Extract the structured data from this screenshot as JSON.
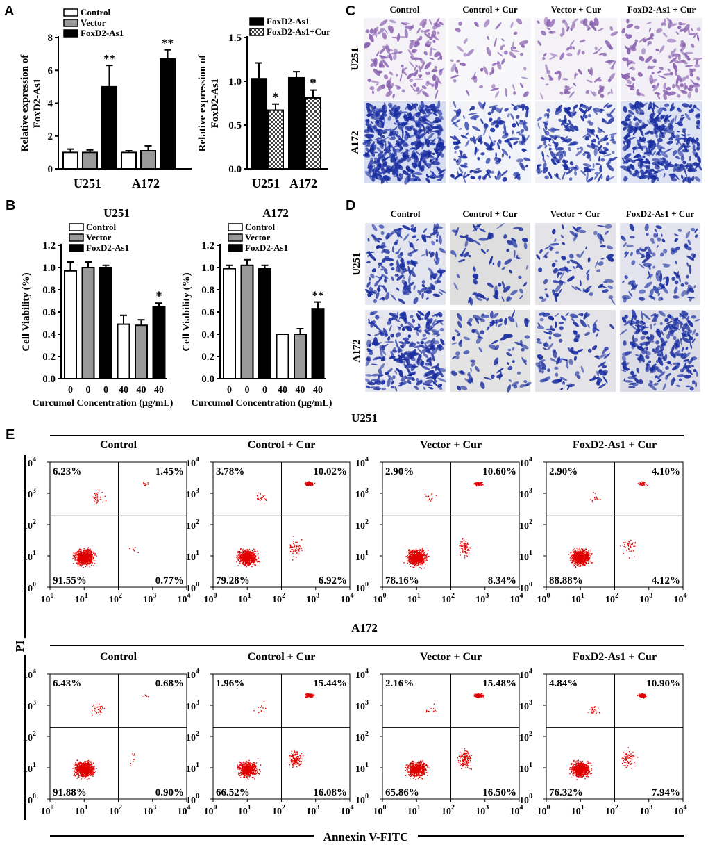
{
  "panels": {
    "A": "A",
    "B": "B",
    "C": "C",
    "D": "D",
    "E": "E"
  },
  "colors": {
    "control": "#ffffff",
    "vector": "#999999",
    "foxd2": "#000000",
    "dots": "#e00000",
    "stain_purple": "#8a63b0",
    "stain_blue": "#1a2ea0"
  },
  "chart_data": [
    {
      "id": "A-left",
      "type": "bar",
      "categories": [
        "U251",
        "A172"
      ],
      "ylabel": "Relative expression of FoxD2-As1",
      "ylim": [
        0,
        8
      ],
      "yticks": [
        0,
        2,
        4,
        6,
        8
      ],
      "legend": [
        "Control",
        "Vector",
        "FoxD2-As1"
      ],
      "series": [
        {
          "name": "Control",
          "values": [
            1.0,
            1.0
          ],
          "err": [
            0.2,
            0.1
          ]
        },
        {
          "name": "Vector",
          "values": [
            1.0,
            1.1
          ],
          "err": [
            0.15,
            0.3
          ]
        },
        {
          "name": "FoxD2-As1",
          "values": [
            5.0,
            6.7
          ],
          "err": [
            1.3,
            0.55
          ]
        }
      ],
      "annotations": [
        "**",
        "**"
      ]
    },
    {
      "id": "A-right",
      "type": "bar",
      "categories": [
        "U251",
        "A172"
      ],
      "ylabel": "Relative expression of FoxD2-As1",
      "ylim": [
        0,
        1.5
      ],
      "yticks": [
        0.0,
        0.5,
        1.0,
        1.5
      ],
      "legend": [
        "FoxD2-As1",
        "FoxD2-As1+Cur"
      ],
      "series": [
        {
          "name": "FoxD2-As1",
          "values": [
            1.03,
            1.04
          ],
          "err": [
            0.18,
            0.07
          ]
        },
        {
          "name": "FoxD2-As1+Cur",
          "values": [
            0.67,
            0.81
          ],
          "err": [
            0.07,
            0.09
          ]
        }
      ],
      "annotations": [
        "*",
        "*"
      ]
    },
    {
      "id": "B-left",
      "type": "bar",
      "title": "U251",
      "categories": [
        "0",
        "0",
        "0",
        "40",
        "40",
        "40"
      ],
      "xlabel": "Curcumol Concentration (μg/mL)",
      "ylabel": "Cell Viability (%)",
      "ylim": [
        0,
        1.2
      ],
      "yticks": [
        0.0,
        0.2,
        0.4,
        0.6,
        0.8,
        1.0,
        1.2
      ],
      "legend": [
        "Control",
        "Vector",
        "FoxD2-As1"
      ],
      "values": [
        0.97,
        1.0,
        1.0,
        0.49,
        0.48,
        0.65
      ],
      "err": [
        0.08,
        0.05,
        0.02,
        0.08,
        0.05,
        0.03
      ],
      "annotations": [
        "",
        "",
        "",
        "",
        "",
        "*"
      ]
    },
    {
      "id": "B-right",
      "type": "bar",
      "title": "A172",
      "categories": [
        "0",
        "0",
        "0",
        "40",
        "40",
        "40"
      ],
      "xlabel": "Curcumol Concentration (μg/mL)",
      "ylabel": "Cell Viability (%)",
      "ylim": [
        0,
        1.2
      ],
      "yticks": [
        0.0,
        0.2,
        0.4,
        0.6,
        0.8,
        1.0,
        1.2
      ],
      "legend": [
        "Control",
        "Vector",
        "FoxD2-As1"
      ],
      "values": [
        0.99,
        1.02,
        0.99,
        0.4,
        0.4,
        0.63
      ],
      "err": [
        0.03,
        0.05,
        0.03,
        0.0,
        0.05,
        0.06
      ],
      "annotations": [
        "",
        "",
        "",
        "",
        "",
        "**"
      ]
    },
    {
      "id": "E",
      "type": "scatter",
      "xlabel": "Annexin V-FITC",
      "ylabel": "PI",
      "xticks": [
        "10",
        "10",
        "10",
        "10",
        "10"
      ],
      "tick_exponents": [
        "0",
        "1",
        "2",
        "3",
        "4"
      ],
      "groups": [
        {
          "title": "U251",
          "plots": [
            {
              "title": "Control",
              "q": [
                "6.23%",
                "1.45%",
                "91.55%",
                "0.77%"
              ]
            },
            {
              "title": "Control + Cur",
              "q": [
                "3.78%",
                "10.02%",
                "79.28%",
                "6.92%"
              ]
            },
            {
              "title": "Vector + Cur",
              "q": [
                "2.90%",
                "10.60%",
                "78.16%",
                "8.34%"
              ]
            },
            {
              "title": "FoxD2-As1 + Cur",
              "q": [
                "2.90%",
                "4.10%",
                "88.88%",
                "4.12%"
              ]
            }
          ]
        },
        {
          "title": "A172",
          "plots": [
            {
              "title": "Control",
              "q": [
                "6.43%",
                "0.68%",
                "91.88%",
                "0.90%"
              ]
            },
            {
              "title": "Control + Cur",
              "q": [
                "1.96%",
                "15.44%",
                "66.52%",
                "16.08%"
              ]
            },
            {
              "title": "Vector + Cur",
              "q": [
                "2.16%",
                "15.48%",
                "65.86%",
                "16.50%"
              ]
            },
            {
              "title": "FoxD2-As1 + Cur",
              "q": [
                "4.84%",
                "10.90%",
                "76.32%",
                "7.94%"
              ]
            }
          ]
        }
      ]
    }
  ],
  "micrographs": {
    "C": {
      "columns": [
        "Control",
        "Control + Cur",
        "Vector + Cur",
        "FoxD2-As1 + Cur"
      ],
      "rows": [
        "U251",
        "A172"
      ]
    },
    "D": {
      "columns": [
        "Control",
        "Control + Cur",
        "Vector + Cur",
        "FoxD2-As1 + Cur"
      ],
      "rows": [
        "U251",
        "A172"
      ]
    }
  }
}
